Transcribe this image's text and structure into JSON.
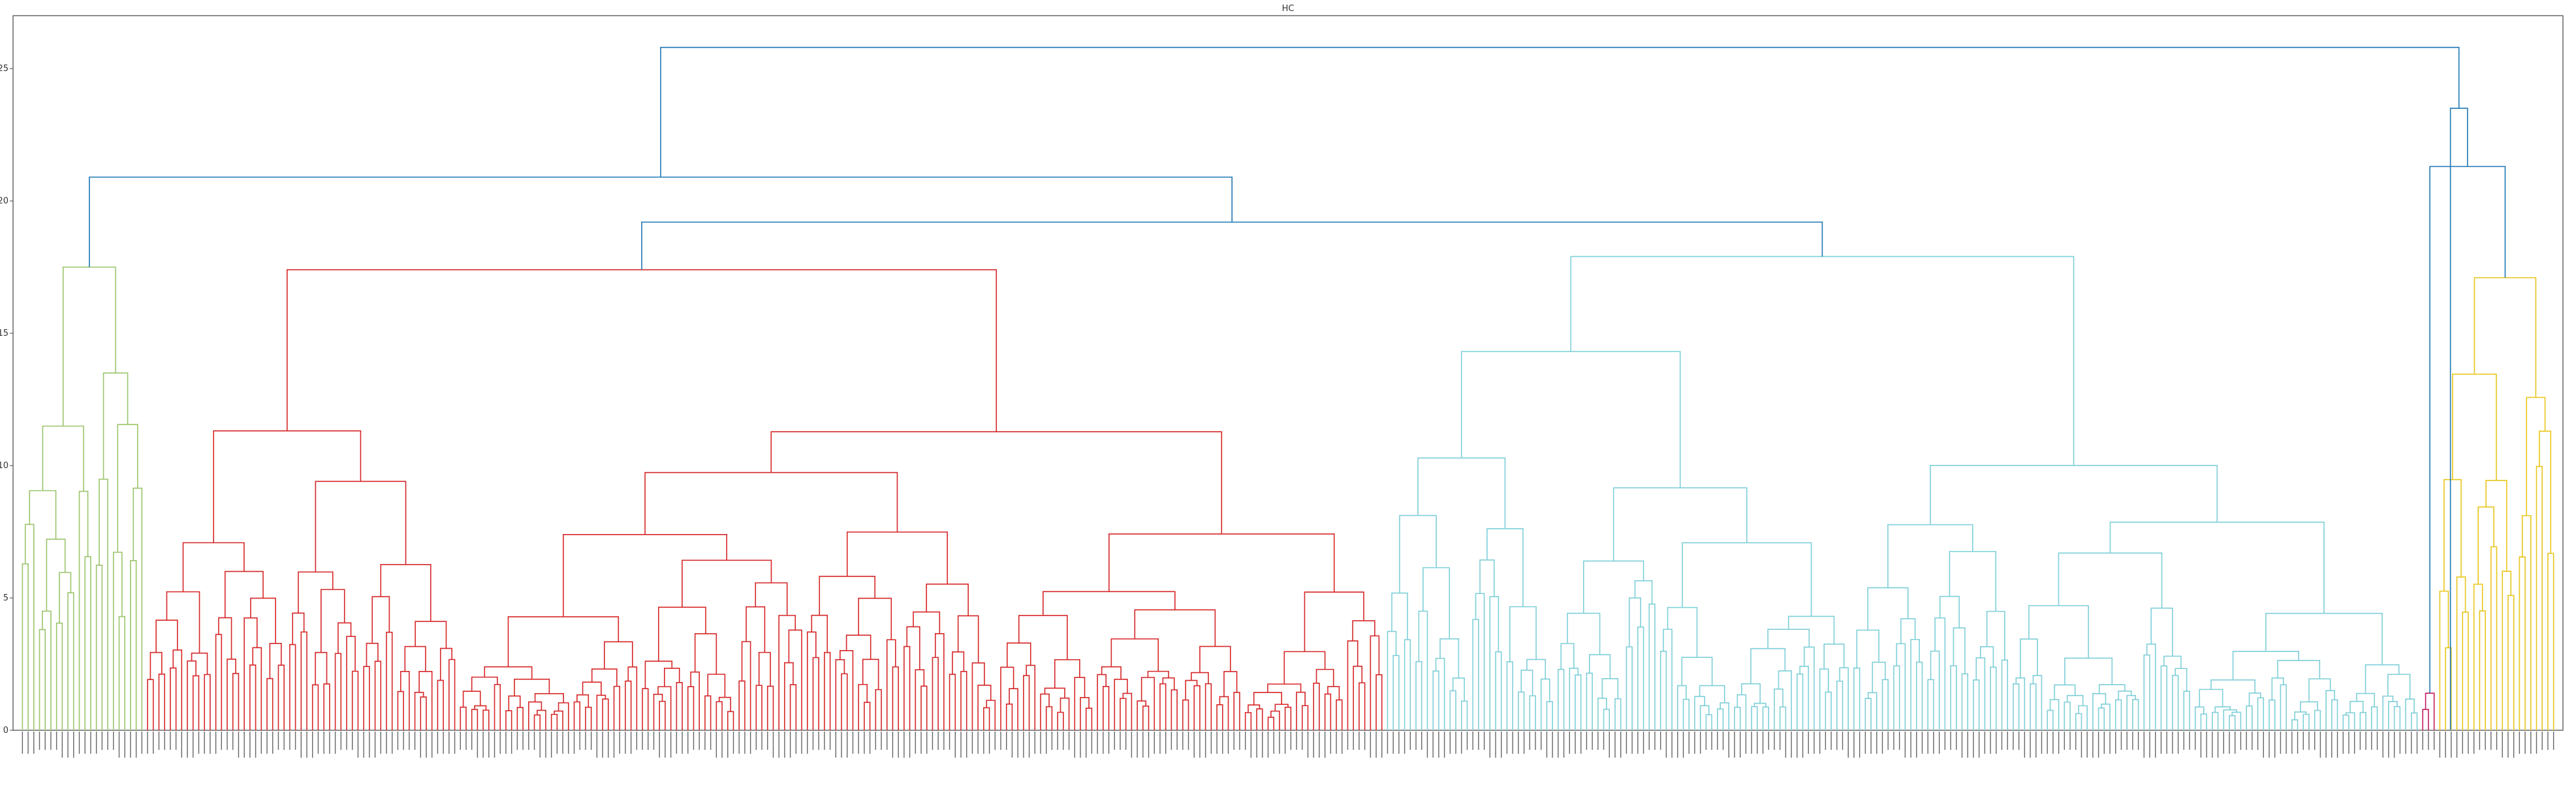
{
  "chart_data": {
    "type": "dendrogram",
    "title": "HC",
    "xlabel": "",
    "ylabel": "",
    "ylim": [
      0,
      27
    ],
    "yticks": [
      0,
      5,
      10,
      15,
      20,
      25
    ],
    "grid": false,
    "leaf_count": 446,
    "cluster_colors": [
      "#9bc46b",
      "#d62728",
      "#7fcfd8",
      "#e8c51a",
      "#c2185b"
    ],
    "link_color_above": "#1f77b4",
    "top_merges": [
      {
        "name": "root",
        "height": 25.8
      },
      {
        "name": "main-left",
        "height": 20.9
      },
      {
        "name": "red-cyan",
        "height": 19.2
      },
      {
        "name": "red",
        "height": 17.4
      },
      {
        "name": "green",
        "height": 17.5
      },
      {
        "name": "cyan",
        "height": 17.9
      },
      {
        "name": "right-group",
        "height": 23.5
      },
      {
        "name": "yellow-magenta",
        "height": 21.3
      },
      {
        "name": "yellow",
        "height": 17.1
      }
    ],
    "clusters": [
      {
        "color": "#9bc46b",
        "leaves": 22,
        "height": 17.5
      },
      {
        "color": "#d62728",
        "leaves": 218,
        "height": 17.4
      },
      {
        "color": "#7fcfd8",
        "leaves": 182,
        "height": 17.9
      },
      {
        "color": "#c2185b",
        "leaves": 3,
        "height": 1.4
      },
      {
        "color": "#e8c51a",
        "leaves": 21,
        "height": 17.1
      }
    ]
  }
}
